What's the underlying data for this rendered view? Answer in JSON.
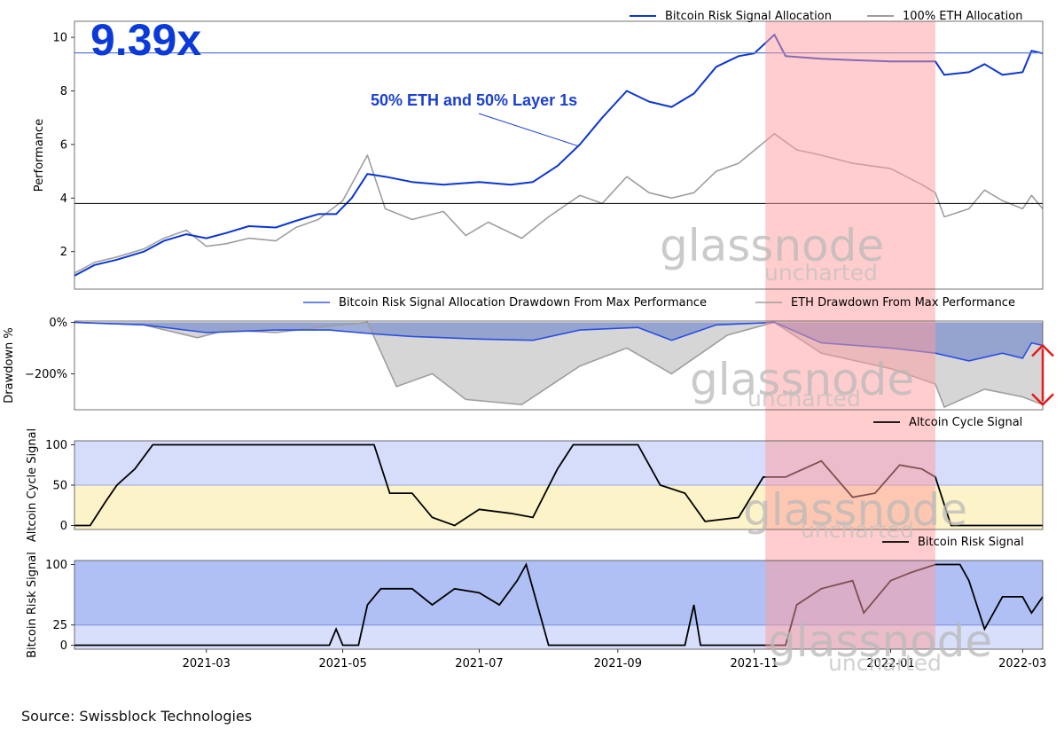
{
  "source": "Source: Swissblock Technologies",
  "watermark": {
    "brand": "glassnode",
    "sub": "uncharted"
  },
  "colors": {
    "blue_line": "#0b36d1",
    "gray_line": "#9e9e9e",
    "shade_red": "#ff9b9b",
    "band_blue": "#b4c3f5",
    "band_yellow": "#fdf3c8",
    "signal_band_dark": "#7d95eb",
    "drawdown_blue": "#7f92cc",
    "drawdown_gray": "#cfcfcf",
    "arrow_red": "#e31b1b"
  },
  "chart_data": [
    {
      "type": "line",
      "panel": "performance",
      "ylabel": "Performance",
      "ylim": [
        0.6,
        10.6
      ],
      "yticks": [
        "2",
        "4",
        "6",
        "8",
        "10"
      ],
      "big_label": "9.39x",
      "annotation": "50% ETH and 50% Layer 1s",
      "reference_lines": [
        9.42,
        3.8
      ],
      "highlight_range": [
        "2021-11-06",
        "2022-01-21"
      ],
      "legend": [
        "Bitcoin Risk Signal Allocation",
        "100% ETH Allocation"
      ],
      "series": [
        {
          "name": "Bitcoin Risk Signal Allocation",
          "points": [
            [
              "2021-01-01",
              1.1
            ],
            [
              "2021-01-10",
              1.5
            ],
            [
              "2021-01-20",
              1.7
            ],
            [
              "2021-02-01",
              2.0
            ],
            [
              "2021-02-10",
              2.4
            ],
            [
              "2021-02-20",
              2.65
            ],
            [
              "2021-03-01",
              2.5
            ],
            [
              "2021-03-10",
              2.7
            ],
            [
              "2021-03-20",
              2.95
            ],
            [
              "2021-04-01",
              2.9
            ],
            [
              "2021-04-10",
              3.15
            ],
            [
              "2021-04-20",
              3.4
            ],
            [
              "2021-04-28",
              3.4
            ],
            [
              "2021-05-05",
              4.0
            ],
            [
              "2021-05-12",
              4.9
            ],
            [
              "2021-05-20",
              4.8
            ],
            [
              "2021-06-01",
              4.6
            ],
            [
              "2021-06-15",
              4.5
            ],
            [
              "2021-07-01",
              4.6
            ],
            [
              "2021-07-15",
              4.5
            ],
            [
              "2021-07-25",
              4.6
            ],
            [
              "2021-08-05",
              5.2
            ],
            [
              "2021-08-15",
              6.0
            ],
            [
              "2021-08-25",
              7.0
            ],
            [
              "2021-09-05",
              8.0
            ],
            [
              "2021-09-15",
              7.6
            ],
            [
              "2021-09-25",
              7.4
            ],
            [
              "2021-10-05",
              7.9
            ],
            [
              "2021-10-15",
              8.9
            ],
            [
              "2021-10-25",
              9.3
            ],
            [
              "2021-11-01",
              9.4
            ],
            [
              "2021-11-10",
              10.1
            ],
            [
              "2021-11-15",
              9.3
            ],
            [
              "2021-12-01",
              9.2
            ],
            [
              "2021-12-15",
              9.15
            ],
            [
              "2022-01-01",
              9.1
            ],
            [
              "2022-01-15",
              9.1
            ],
            [
              "2022-01-21",
              9.1
            ],
            [
              "2022-01-25",
              8.6
            ],
            [
              "2022-02-05",
              8.7
            ],
            [
              "2022-02-12",
              9.0
            ],
            [
              "2022-02-20",
              8.6
            ],
            [
              "2022-03-01",
              8.7
            ],
            [
              "2022-03-05",
              9.5
            ],
            [
              "2022-03-10",
              9.4
            ]
          ]
        },
        {
          "name": "100% ETH Allocation",
          "points": [
            [
              "2021-01-01",
              1.2
            ],
            [
              "2021-01-10",
              1.6
            ],
            [
              "2021-01-20",
              1.8
            ],
            [
              "2021-02-01",
              2.1
            ],
            [
              "2021-02-10",
              2.5
            ],
            [
              "2021-02-20",
              2.8
            ],
            [
              "2021-03-01",
              2.2
            ],
            [
              "2021-03-10",
              2.3
            ],
            [
              "2021-03-20",
              2.5
            ],
            [
              "2021-04-01",
              2.4
            ],
            [
              "2021-04-10",
              2.9
            ],
            [
              "2021-04-20",
              3.2
            ],
            [
              "2021-05-01",
              3.9
            ],
            [
              "2021-05-12",
              5.6
            ],
            [
              "2021-05-20",
              3.6
            ],
            [
              "2021-06-01",
              3.2
            ],
            [
              "2021-06-15",
              3.5
            ],
            [
              "2021-06-25",
              2.6
            ],
            [
              "2021-07-05",
              3.1
            ],
            [
              "2021-07-20",
              2.5
            ],
            [
              "2021-08-01",
              3.3
            ],
            [
              "2021-08-15",
              4.1
            ],
            [
              "2021-08-25",
              3.8
            ],
            [
              "2021-09-05",
              4.8
            ],
            [
              "2021-09-15",
              4.2
            ],
            [
              "2021-09-25",
              4.0
            ],
            [
              "2021-10-05",
              4.2
            ],
            [
              "2021-10-15",
              5.0
            ],
            [
              "2021-10-25",
              5.3
            ],
            [
              "2021-11-10",
              6.4
            ],
            [
              "2021-11-20",
              5.8
            ],
            [
              "2021-12-01",
              5.6
            ],
            [
              "2021-12-15",
              5.3
            ],
            [
              "2022-01-01",
              5.1
            ],
            [
              "2022-01-15",
              4.5
            ],
            [
              "2022-01-21",
              4.2
            ],
            [
              "2022-01-25",
              3.3
            ],
            [
              "2022-02-05",
              3.6
            ],
            [
              "2022-02-12",
              4.3
            ],
            [
              "2022-02-20",
              3.9
            ],
            [
              "2022-03-01",
              3.6
            ],
            [
              "2022-03-05",
              4.1
            ],
            [
              "2022-03-10",
              3.6
            ]
          ]
        }
      ]
    },
    {
      "type": "area",
      "panel": "drawdown",
      "ylabel": "Drawdown %",
      "ylim": [
        -340,
        5
      ],
      "yticks": [
        "0%",
        "−200%"
      ],
      "legend": [
        "Bitcoin Risk Signal Allocation Drawdown From Max Performance",
        "ETH Drawdown From Max Performance"
      ],
      "series": [
        {
          "name": "Bitcoin Risk Signal Allocation Drawdown From Max Performance",
          "points": [
            [
              "2021-01-01",
              0
            ],
            [
              "2021-02-01",
              -10
            ],
            [
              "2021-03-01",
              -40
            ],
            [
              "2021-04-01",
              -30
            ],
            [
              "2021-04-25",
              -30
            ],
            [
              "2021-05-15",
              -45
            ],
            [
              "2021-06-01",
              -55
            ],
            [
              "2021-07-01",
              -65
            ],
            [
              "2021-07-25",
              -70
            ],
            [
              "2021-08-15",
              -30
            ],
            [
              "2021-09-10",
              -20
            ],
            [
              "2021-09-25",
              -70
            ],
            [
              "2021-10-15",
              -10
            ],
            [
              "2021-11-10",
              0
            ],
            [
              "2021-12-01",
              -80
            ],
            [
              "2022-01-01",
              -100
            ],
            [
              "2022-01-21",
              -120
            ],
            [
              "2022-02-05",
              -150
            ],
            [
              "2022-02-20",
              -120
            ],
            [
              "2022-03-01",
              -140
            ],
            [
              "2022-03-05",
              -80
            ],
            [
              "2022-03-10",
              -90
            ]
          ]
        },
        {
          "name": "ETH Drawdown From Max Performance",
          "points": [
            [
              "2021-01-01",
              0
            ],
            [
              "2021-02-01",
              -10
            ],
            [
              "2021-02-25",
              -60
            ],
            [
              "2021-03-10",
              -30
            ],
            [
              "2021-04-01",
              -40
            ],
            [
              "2021-04-20",
              -20
            ],
            [
              "2021-05-12",
              0
            ],
            [
              "2021-05-25",
              -250
            ],
            [
              "2021-06-10",
              -200
            ],
            [
              "2021-06-25",
              -300
            ],
            [
              "2021-07-20",
              -320
            ],
            [
              "2021-08-15",
              -170
            ],
            [
              "2021-09-05",
              -100
            ],
            [
              "2021-09-25",
              -200
            ],
            [
              "2021-10-20",
              -50
            ],
            [
              "2021-11-10",
              0
            ],
            [
              "2021-12-01",
              -120
            ],
            [
              "2022-01-01",
              -180
            ],
            [
              "2022-01-21",
              -240
            ],
            [
              "2022-01-25",
              -330
            ],
            [
              "2022-02-12",
              -260
            ],
            [
              "2022-03-01",
              -290
            ],
            [
              "2022-03-10",
              -320
            ]
          ]
        }
      ]
    },
    {
      "type": "line",
      "panel": "altcoin_cycle_signal",
      "ylabel": "Altcoin Cycle Signal",
      "ylim": [
        -5,
        105
      ],
      "yticks": [
        "0",
        "50",
        "100"
      ],
      "bands": [
        0,
        50,
        100
      ],
      "legend": [
        "Altcoin Cycle Signal"
      ],
      "series": [
        {
          "name": "Altcoin Cycle Signal",
          "points": [
            [
              "2021-01-01",
              0
            ],
            [
              "2021-01-08",
              0
            ],
            [
              "2021-01-15",
              30
            ],
            [
              "2021-01-20",
              50
            ],
            [
              "2021-01-28",
              70
            ],
            [
              "2021-02-05",
              100
            ],
            [
              "2021-04-30",
              100
            ],
            [
              "2021-05-08",
              100
            ],
            [
              "2021-05-15",
              100
            ],
            [
              "2021-05-22",
              40
            ],
            [
              "2021-06-01",
              40
            ],
            [
              "2021-06-10",
              10
            ],
            [
              "2021-06-20",
              0
            ],
            [
              "2021-07-01",
              20
            ],
            [
              "2021-07-15",
              15
            ],
            [
              "2021-07-25",
              10
            ],
            [
              "2021-08-05",
              70
            ],
            [
              "2021-08-12",
              100
            ],
            [
              "2021-09-10",
              100
            ],
            [
              "2021-09-20",
              50
            ],
            [
              "2021-10-01",
              40
            ],
            [
              "2021-10-10",
              5
            ],
            [
              "2021-10-25",
              10
            ],
            [
              "2021-11-05",
              60
            ],
            [
              "2021-11-15",
              60
            ],
            [
              "2021-12-01",
              80
            ],
            [
              "2021-12-15",
              35
            ],
            [
              "2021-12-25",
              40
            ],
            [
              "2022-01-05",
              75
            ],
            [
              "2022-01-15",
              70
            ],
            [
              "2022-01-21",
              60
            ],
            [
              "2022-01-28",
              0
            ],
            [
              "2022-03-10",
              0
            ]
          ]
        }
      ]
    },
    {
      "type": "line",
      "panel": "bitcoin_risk_signal",
      "ylabel": "Bitcoin Risk Signal",
      "ylim": [
        -5,
        105
      ],
      "yticks": [
        "0",
        "25",
        "100"
      ],
      "bands": [
        0,
        25,
        100
      ],
      "legend": [
        "Bitcoin Risk Signal"
      ],
      "series": [
        {
          "name": "Bitcoin Risk Signal",
          "points": [
            [
              "2021-01-01",
              0
            ],
            [
              "2021-04-25",
              0
            ],
            [
              "2021-04-28",
              20
            ],
            [
              "2021-05-01",
              0
            ],
            [
              "2021-05-08",
              0
            ],
            [
              "2021-05-12",
              50
            ],
            [
              "2021-05-18",
              70
            ],
            [
              "2021-06-01",
              70
            ],
            [
              "2021-06-10",
              50
            ],
            [
              "2021-06-20",
              70
            ],
            [
              "2021-07-01",
              65
            ],
            [
              "2021-07-10",
              50
            ],
            [
              "2021-07-18",
              80
            ],
            [
              "2021-07-22",
              100
            ],
            [
              "2021-08-01",
              0
            ],
            [
              "2021-10-01",
              0
            ],
            [
              "2021-10-05",
              50
            ],
            [
              "2021-10-08",
              0
            ],
            [
              "2021-11-05",
              0
            ],
            [
              "2021-11-10",
              0
            ],
            [
              "2021-11-15",
              0
            ],
            [
              "2021-11-20",
              50
            ],
            [
              "2021-12-01",
              70
            ],
            [
              "2021-12-15",
              80
            ],
            [
              "2021-12-20",
              40
            ],
            [
              "2022-01-01",
              80
            ],
            [
              "2022-01-10",
              90
            ],
            [
              "2022-01-21",
              100
            ],
            [
              "2022-02-01",
              100
            ],
            [
              "2022-02-05",
              80
            ],
            [
              "2022-02-12",
              20
            ],
            [
              "2022-02-20",
              60
            ],
            [
              "2022-03-01",
              60
            ],
            [
              "2022-03-05",
              40
            ],
            [
              "2022-03-10",
              60
            ]
          ]
        }
      ]
    },
    {
      "type": "axis",
      "xticks": [
        [
          "2021-03-01",
          "2021-03"
        ],
        [
          "2021-05-01",
          "2021-05"
        ],
        [
          "2021-07-01",
          "2021-07"
        ],
        [
          "2021-09-01",
          "2021-09"
        ],
        [
          "2021-11-01",
          "2021-11"
        ],
        [
          "2022-01-01",
          "2022-01"
        ],
        [
          "2022-03-01",
          "2022-03"
        ]
      ],
      "xlim": [
        "2021-01-01",
        "2022-03-10"
      ]
    }
  ]
}
